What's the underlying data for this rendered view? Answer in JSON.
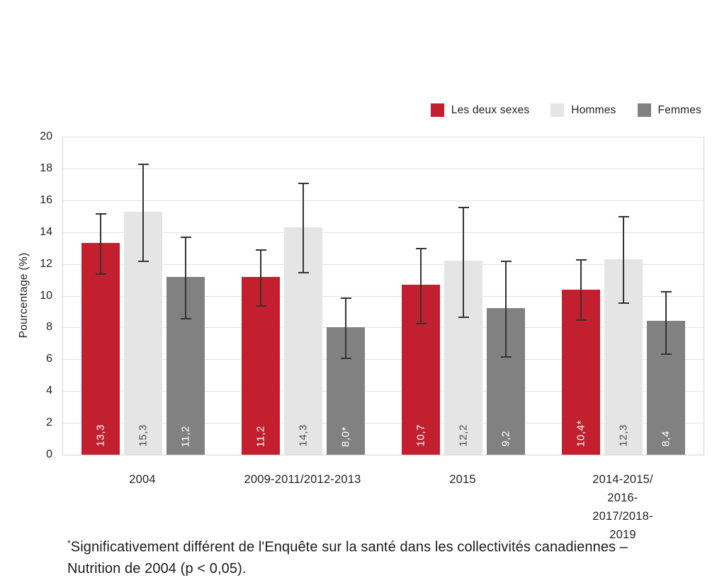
{
  "figure": {
    "background": "#ffffff",
    "text_color": "#231f20"
  },
  "chart_data": {
    "type": "bar",
    "title": "",
    "xlabel": "",
    "ylabel": "Pourcentage (%)",
    "ylim": [
      0,
      20
    ],
    "ytick_step": 2,
    "grid": true,
    "legend_position": "top-right",
    "error_bar_color": "#3a3132",
    "categories": [
      "2004",
      "2009-2011/2012-2013",
      "2015",
      "2014-2015/\n2016-2017/2018-2019"
    ],
    "series": [
      {
        "name": "Les deux sexes",
        "color": "#c2202e",
        "label_color": "#ffffff",
        "values": [
          13.3,
          11.2,
          10.7,
          10.4
        ],
        "value_labels": [
          "13,3",
          "11,2",
          "10,7",
          "10,4*"
        ],
        "error_low": [
          11.3,
          9.3,
          8.2,
          8.4
        ],
        "error_high": [
          15.2,
          12.9,
          13.0,
          12.3
        ]
      },
      {
        "name": "Hommes",
        "color": "#e6e5e5",
        "label_color": "#4d4d4f",
        "values": [
          15.3,
          14.3,
          12.2,
          12.3
        ],
        "value_labels": [
          "15,3",
          "14,3",
          "12,2",
          "12,3"
        ],
        "error_low": [
          12.1,
          11.4,
          8.6,
          9.5
        ],
        "error_high": [
          18.3,
          17.1,
          15.6,
          15.0
        ]
      },
      {
        "name": "Femmes",
        "color": "#818181",
        "label_color": "#ffffff",
        "values": [
          11.2,
          8.0,
          9.2,
          8.4
        ],
        "value_labels": [
          "11,2",
          "8,0*",
          "9,2",
          "8,4"
        ],
        "error_low": [
          8.5,
          6.0,
          6.1,
          6.3
        ],
        "error_high": [
          13.7,
          9.9,
          12.2,
          10.3
        ]
      }
    ]
  },
  "footnote": {
    "marker": "*",
    "line1": "Significativement différent de l'Enquête sur la santé dans les collectivités canadiennes –",
    "line2": "Nutrition de 2004 (p < 0,05)."
  }
}
